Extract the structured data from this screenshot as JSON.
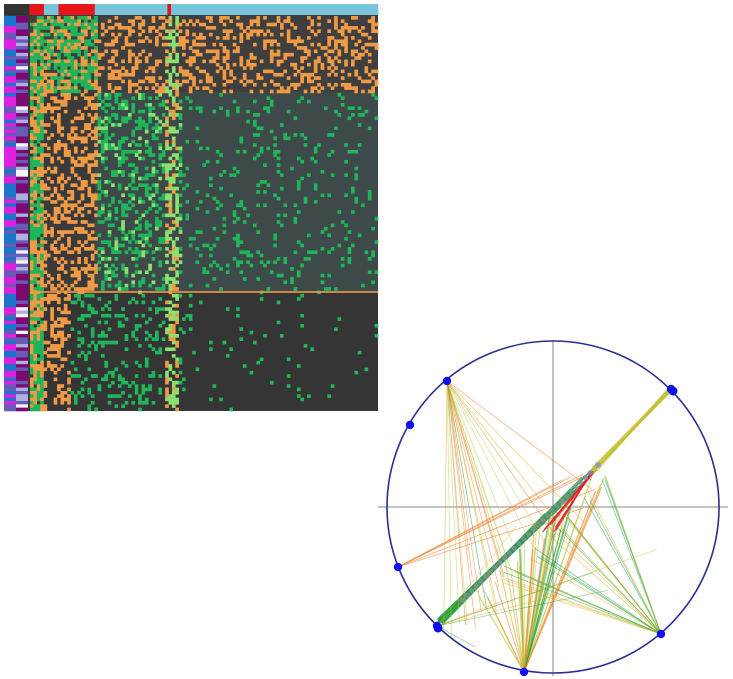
{
  "figure": {
    "heatmap": {
      "column_groups": [
        {
          "color": "#333333",
          "span": 7
        },
        {
          "color": "#e8141c",
          "span": 4
        },
        {
          "color": "#77c4dd",
          "span": 4
        },
        {
          "color": "#e8141c",
          "span": 10
        },
        {
          "color": "#77c4dd",
          "span": 20
        },
        {
          "color": "#e8141c",
          "span": 1
        },
        {
          "color": "#77c4dd",
          "span": 57
        }
      ],
      "row_annotation_palette": [
        "#e020e0",
        "#1a76c8",
        "#6a5ab8",
        "#7a0a72",
        "#b0b0e0",
        "#f4f4f4"
      ],
      "cell_colors": {
        "orange": "#f09a46",
        "green": "#1fb55a",
        "light_green": "#8de070",
        "background": "#3c3c3c"
      }
    },
    "radial_plot": {
      "circle_color": "#2a2f90",
      "node_color": "#1010ee",
      "edge_palette": [
        "#1fa040",
        "#d7b020",
        "#f08030",
        "#b8d050",
        "#e02020"
      ]
    }
  }
}
